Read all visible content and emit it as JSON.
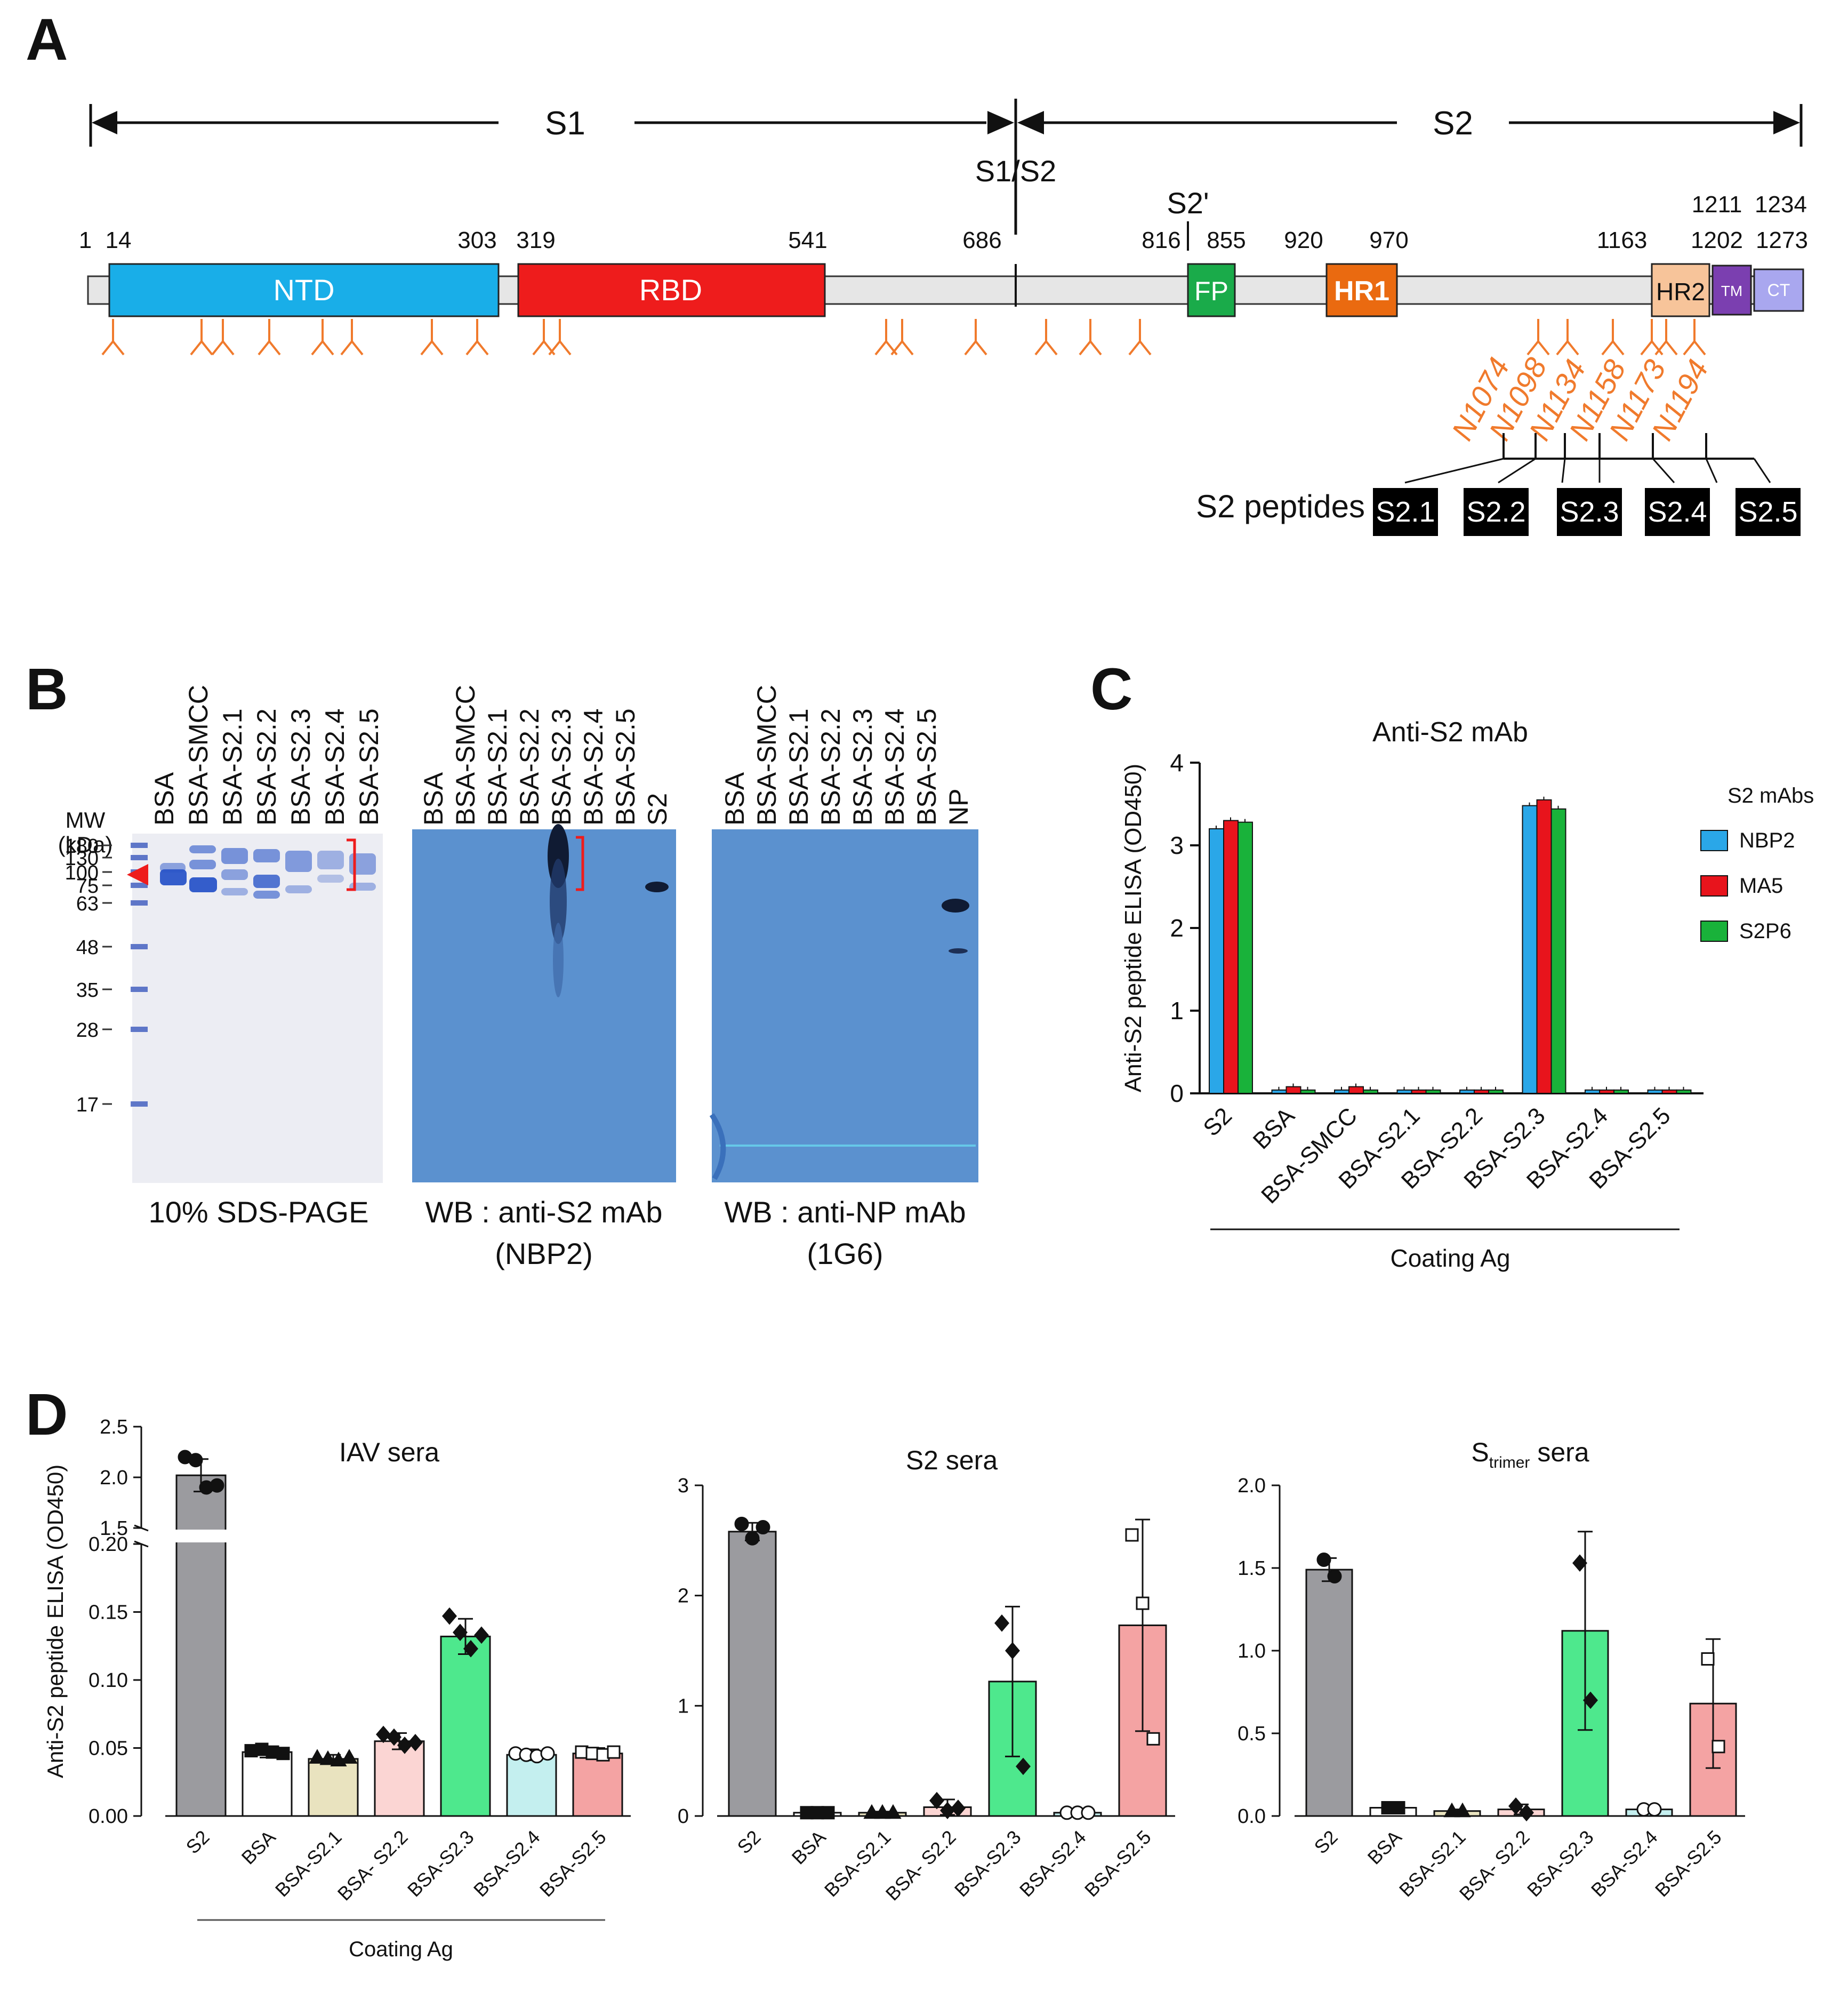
{
  "panel_letters": {
    "a": "A",
    "b": "B",
    "c": "C",
    "d": "D"
  },
  "panel_a": {
    "s1_label": "S1",
    "s2_label": "S2",
    "cleavage_s1s2": "S1/S2",
    "cleavage_s2prime": "S2'",
    "positions": [
      "1",
      "14",
      "303",
      "319",
      "541",
      "686",
      "816",
      "855",
      "920",
      "970",
      "1163",
      "1202",
      "1211",
      "1234",
      "1273"
    ],
    "domains": [
      {
        "label": "NTD",
        "color": "#19aee8"
      },
      {
        "label": "RBD",
        "color": "#ee1c1c"
      },
      {
        "label": "FP",
        "color": "#1aab4a"
      },
      {
        "label": "HR1",
        "color": "#ea6a10"
      },
      {
        "label": "HR2",
        "color": "#f7c49a"
      },
      {
        "label": "TM",
        "color": "#7b3fb0"
      },
      {
        "label": "CT",
        "color": "#a9a7ef"
      }
    ],
    "glycan_color": "#f07a2c",
    "glycosites": [
      "N1074",
      "N1098",
      "N1134",
      "N1158",
      "N1173",
      "N1194"
    ],
    "peptides_label": "S2 peptides",
    "peptides": [
      "S2.1",
      "S2.2",
      "S2.3",
      "S2.4",
      "S2.5"
    ]
  },
  "panel_b": {
    "gel1": {
      "mw_title_1": "MW",
      "mw_title_2": "(kDa)",
      "markers": [
        "180",
        "130",
        "100",
        "75",
        "63",
        "48",
        "35",
        "28",
        "17"
      ],
      "lanes": [
        "BSA",
        "BSA-SMCC",
        "BSA-S2.1",
        "BSA-S2.2",
        "BSA-S2.3",
        "BSA-S2.4",
        "BSA-S2.5"
      ],
      "caption": "10% SDS-PAGE"
    },
    "gel2": {
      "lanes": [
        "BSA",
        "BSA-SMCC",
        "BSA-S2.1",
        "BSA-S2.2",
        "BSA-S2.3",
        "BSA-S2.4",
        "BSA-S2.5",
        "S2"
      ],
      "caption_1": "WB : anti-S2 mAb",
      "caption_2": "(NBP2)"
    },
    "gel3": {
      "lanes": [
        "BSA",
        "BSA-SMCC",
        "BSA-S2.1",
        "BSA-S2.2",
        "BSA-S2.3",
        "BSA-S2.4",
        "BSA-S2.5",
        "NP"
      ],
      "caption_1": "WB : anti-NP mAb",
      "caption_2": "(1G6)"
    },
    "gel_blue": "#5b91cf"
  },
  "chart_data": [
    {
      "type": "bar",
      "title": "Anti-S2 mAb",
      "ylabel": "Anti-S2 peptide ELISA (OD450)",
      "xlabel": "Coating Ag",
      "legend_title": "S2 mAbs",
      "legend_position": "right",
      "categories": [
        "S2",
        "BSA",
        "BSA-SMCC",
        "BSA-S2.1",
        "BSA-S2.2",
        "BSA-S2.3",
        "BSA-S2.4",
        "BSA-S2.5"
      ],
      "ylim": [
        0,
        4
      ],
      "yticks": [
        "0",
        "1",
        "2",
        "3",
        "4"
      ],
      "series": [
        {
          "name": "NBP2",
          "color": "#2aa7e8",
          "values": [
            3.2,
            0.04,
            0.04,
            0.04,
            0.04,
            3.48,
            0.04,
            0.04
          ]
        },
        {
          "name": "MA5",
          "color": "#e8141c",
          "values": [
            3.3,
            0.08,
            0.08,
            0.04,
            0.04,
            3.55,
            0.04,
            0.04
          ]
        },
        {
          "name": "S2P6",
          "color": "#19b23a",
          "values": [
            3.28,
            0.04,
            0.04,
            0.04,
            0.04,
            3.44,
            0.04,
            0.04
          ]
        }
      ]
    },
    {
      "type": "bar",
      "title": "IAV sera",
      "ylabel": "Anti-S2 peptide ELISA (OD450)",
      "xlabel": "Coating Ag",
      "y_axis_break": [
        0.2,
        1.5
      ],
      "yticks_upper": [
        "1.5",
        "2.0",
        "2.5"
      ],
      "yticks_lower": [
        "0.00",
        "0.05",
        "0.10",
        "0.15",
        "0.20"
      ],
      "categories": [
        "S2",
        "BSA",
        "BSA-S2.1",
        "BSA- S2.2",
        "BSA-S2.3",
        "BSA-S2.4",
        "BSA-S2.5"
      ],
      "colors": [
        "#9b9b9f",
        "#ffffff",
        "#e9e3bf",
        "#fbd5d3",
        "#4ee88d",
        "#c4efef",
        "#f4a3a3"
      ],
      "values": [
        2.02,
        0.047,
        0.042,
        0.055,
        0.132,
        0.045,
        0.046
      ],
      "errors": [
        0.16,
        0.004,
        0.003,
        0.006,
        0.013,
        0.004,
        0.004
      ],
      "points": [
        [
          2.2,
          2.17,
          1.9,
          1.92
        ],
        [
          0.048,
          0.049,
          0.047,
          0.046
        ],
        [
          0.043,
          0.042,
          0.041,
          0.043
        ],
        [
          0.06,
          0.058,
          0.052,
          0.054
        ],
        [
          0.147,
          0.135,
          0.123,
          0.133
        ],
        [
          0.046,
          0.045,
          0.044,
          0.046
        ],
        [
          0.047,
          0.046,
          0.045,
          0.047
        ]
      ]
    },
    {
      "type": "bar",
      "title": "S2 sera",
      "ylim": [
        0,
        3
      ],
      "yticks": [
        "0",
        "1",
        "2",
        "3"
      ],
      "categories": [
        "S2",
        "BSA",
        "BSA-S2.1",
        "BSA- S2.2",
        "BSA-S2.3",
        "BSA-S2.4",
        "BSA-S2.5"
      ],
      "colors": [
        "#9b9b9f",
        "#ffffff",
        "#e9e3bf",
        "#fbd5d3",
        "#4ee88d",
        "#c4efef",
        "#f4a3a3"
      ],
      "values": [
        2.58,
        0.03,
        0.03,
        0.08,
        1.22,
        0.03,
        1.73
      ],
      "errors": [
        0.08,
        0.01,
        0.01,
        0.07,
        0.68,
        0.01,
        0.96
      ],
      "points": [
        [
          2.65,
          2.52,
          2.62
        ],
        [
          0.03,
          0.03,
          0.03
        ],
        [
          0.03,
          0.03,
          0.03
        ],
        [
          0.14,
          0.05,
          0.07
        ],
        [
          1.75,
          1.5,
          0.45
        ],
        [
          0.03,
          0.03,
          0.03
        ],
        [
          2.55,
          1.93,
          0.7
        ]
      ]
    },
    {
      "type": "bar",
      "title_main": "S",
      "title_sub": "trimer",
      "title_tail": " sera",
      "ylim": [
        0,
        2
      ],
      "yticks": [
        "0.0",
        "0.5",
        "1.0",
        "1.5",
        "2.0"
      ],
      "categories": [
        "S2",
        "BSA",
        "BSA-S2.1",
        "BSA- S2.2",
        "BSA-S2.3",
        "BSA-S2.4",
        "BSA-S2.5"
      ],
      "colors": [
        "#9b9b9f",
        "#ffffff",
        "#e9e3bf",
        "#fbd5d3",
        "#4ee88d",
        "#c4efef",
        "#f4a3a3"
      ],
      "values": [
        1.49,
        0.05,
        0.03,
        0.04,
        1.12,
        0.04,
        0.68
      ],
      "errors": [
        0.07,
        0.01,
        0.01,
        0.03,
        0.6,
        0.01,
        0.39
      ],
      "points": [
        [
          1.55,
          1.45
        ],
        [
          0.05,
          0.05
        ],
        [
          0.03,
          0.03
        ],
        [
          0.06,
          0.02
        ],
        [
          1.53,
          0.7
        ],
        [
          0.04,
          0.04
        ],
        [
          0.95,
          0.42
        ]
      ]
    }
  ]
}
